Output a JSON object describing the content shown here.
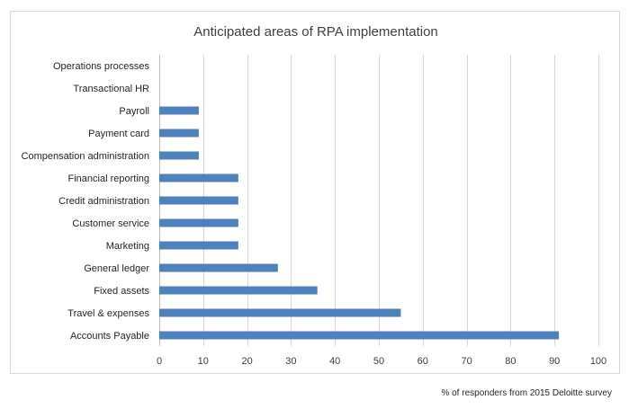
{
  "chart_data": {
    "type": "bar",
    "orientation": "horizontal",
    "title": "Anticipated areas of RPA implementation",
    "categories": [
      "Operations processes",
      "Transactional HR",
      "Payroll",
      "Payment card",
      "Compensation administration",
      "Financial reporting",
      "Credit administration",
      "Customer service",
      "Marketing",
      "General ledger",
      "Fixed assets",
      "Travel & expenses",
      "Accounts Payable"
    ],
    "values": [
      0,
      0,
      9,
      9,
      9,
      18,
      18,
      18,
      18,
      27,
      36,
      55,
      91
    ],
    "xlim": [
      0,
      100
    ],
    "xticks": [
      0,
      10,
      20,
      30,
      40,
      50,
      60,
      70,
      80,
      90,
      100
    ],
    "xlabel": "",
    "ylabel": "",
    "grid": true,
    "bar_color": "#4f81bd",
    "grid_color": "#d9d9d9"
  },
  "footnote": "% of responders from 2015 Deloitte survey"
}
